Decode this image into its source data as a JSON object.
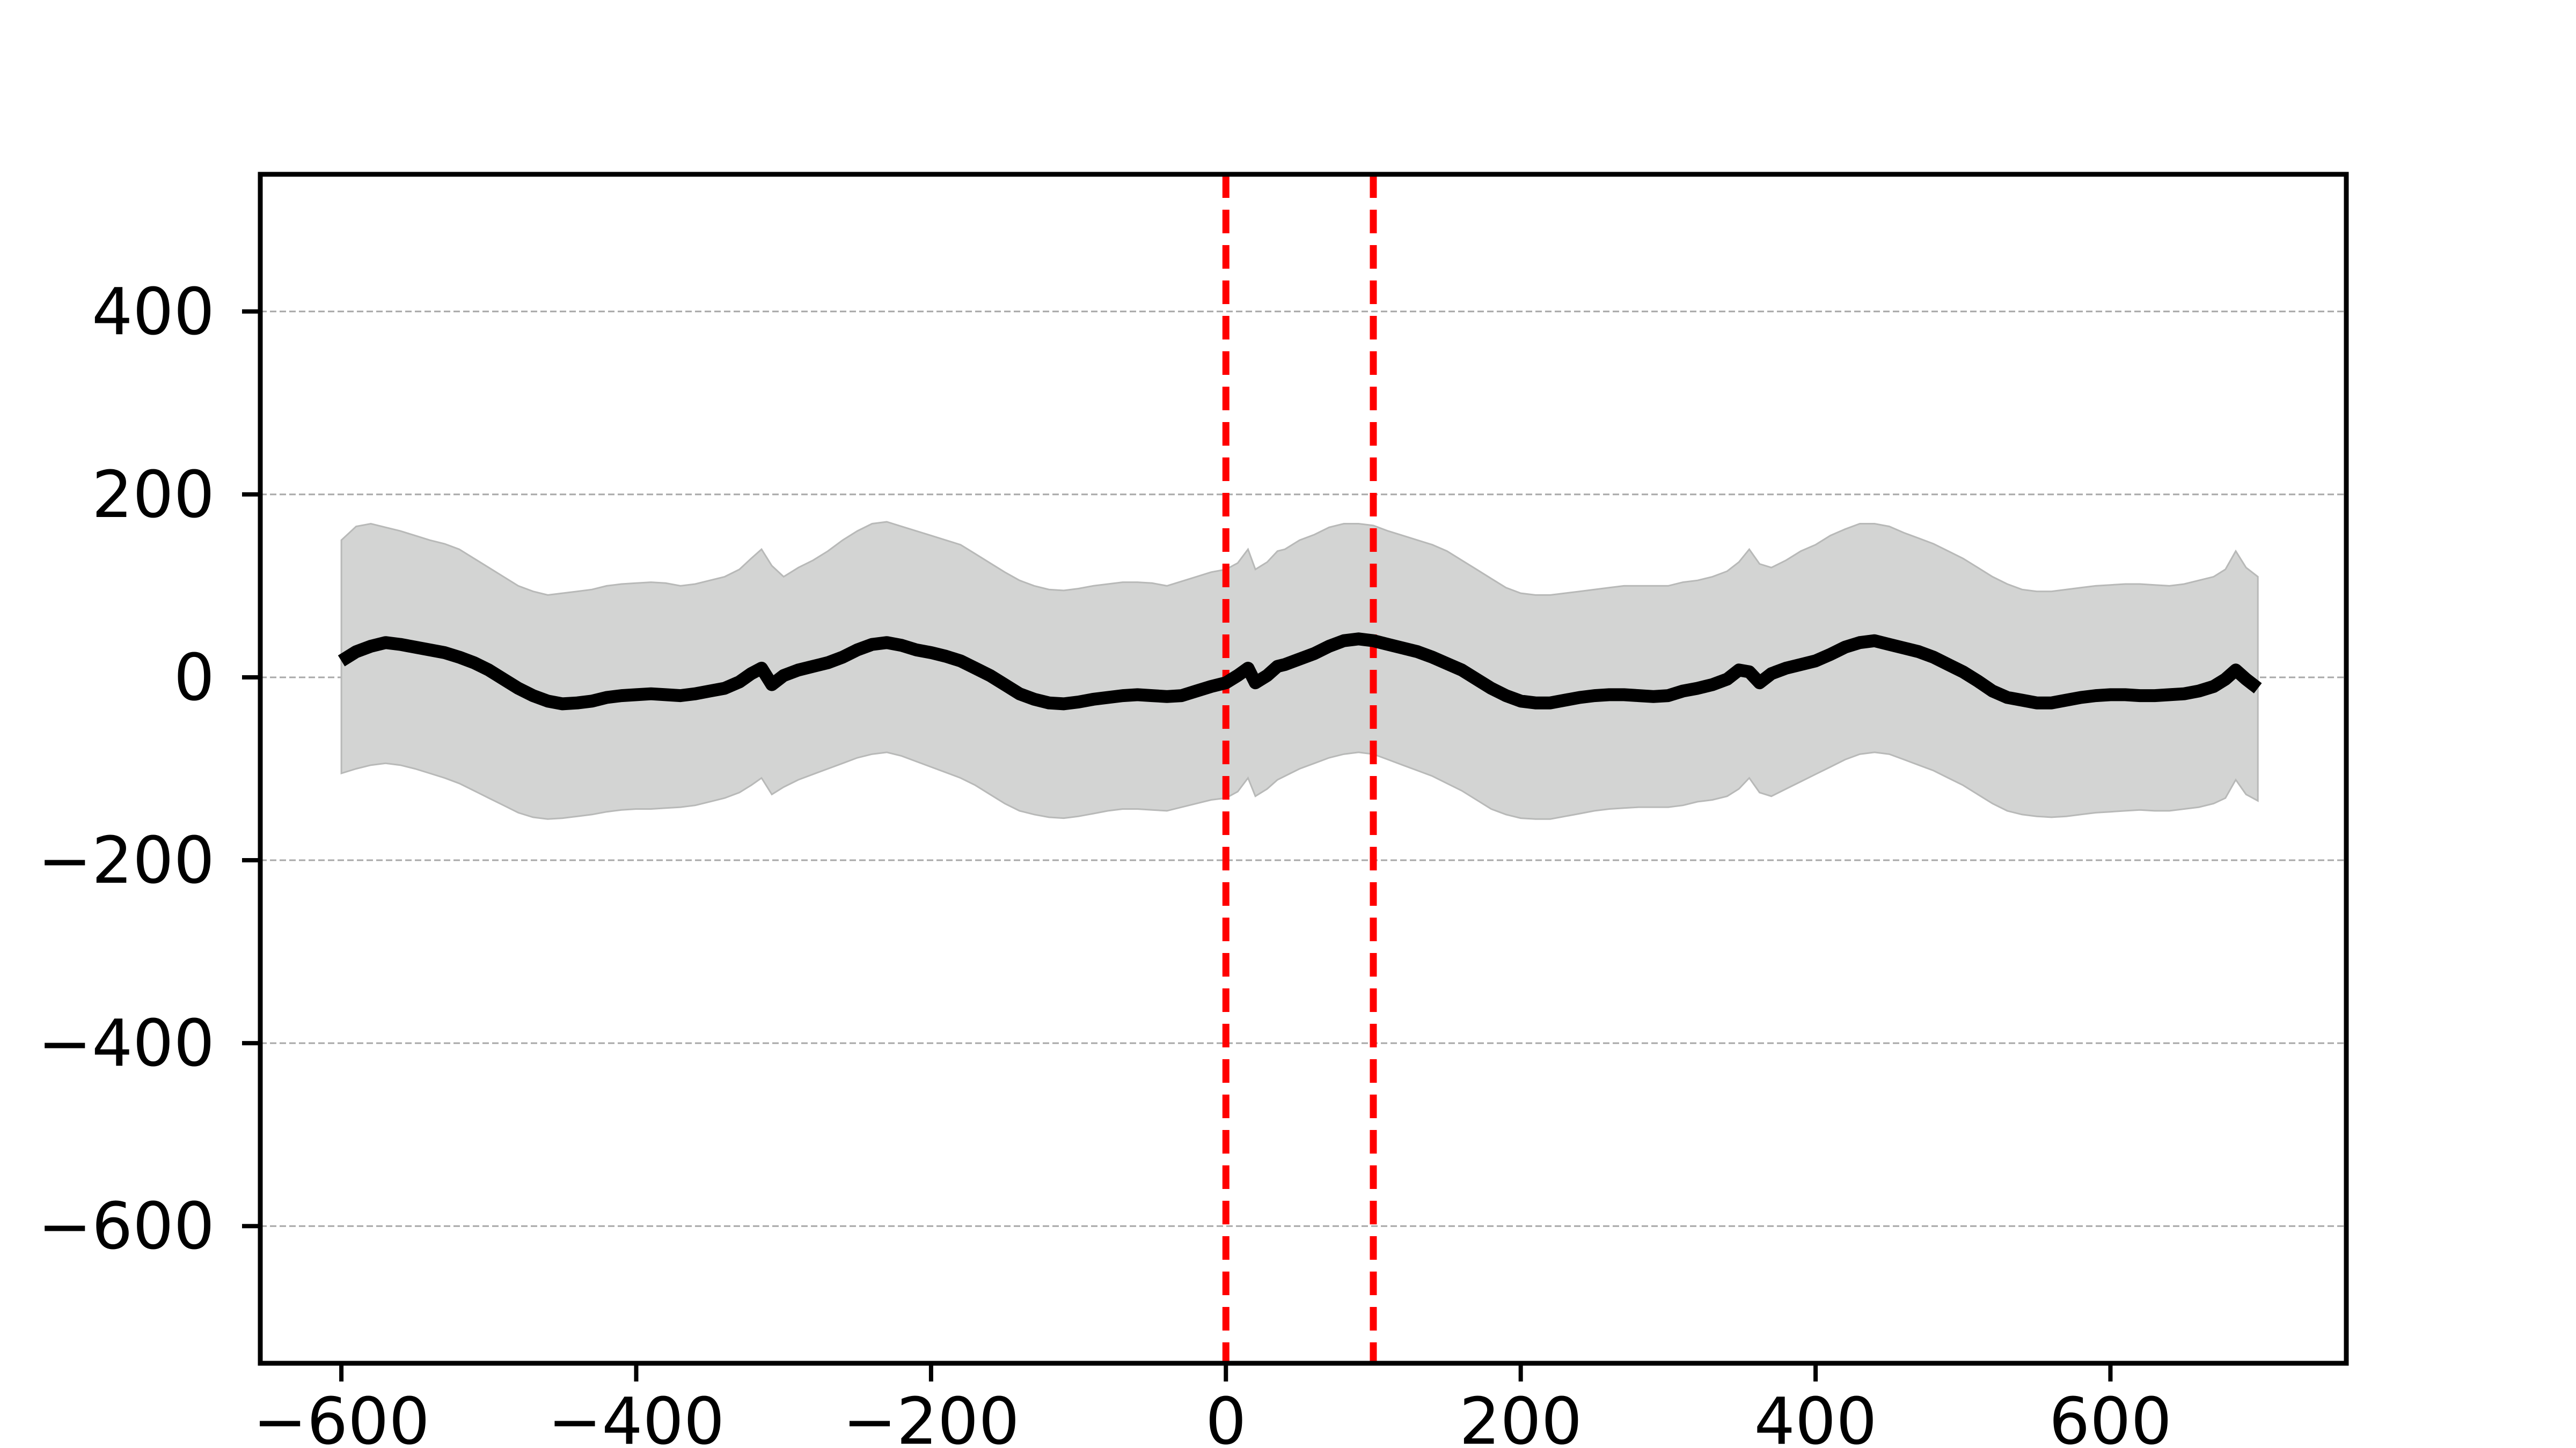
{
  "chart_data": {
    "type": "line",
    "title": "",
    "xlabel": "",
    "ylabel": "",
    "xlim": [
      -655,
      760
    ],
    "ylim": [
      -750,
      550
    ],
    "x_ticks": [
      -600,
      -400,
      -200,
      0,
      200,
      400,
      600
    ],
    "y_ticks": [
      -600,
      -400,
      -200,
      0,
      200,
      400
    ],
    "x_tick_labels": [
      "−600",
      "−400",
      "−200",
      "0",
      "200",
      "400",
      "600"
    ],
    "y_tick_labels": [
      "−600",
      "−400",
      "−200",
      "0",
      "200",
      "400"
    ],
    "grid": "horizontal dashed",
    "vertical_lines": [
      0,
      100
    ],
    "colors": {
      "mean_line": "#000000",
      "band_fill": "#d3d4d3",
      "band_edge": "#b8b9b8",
      "vertical_lines": "#ff0000",
      "grid": "#a8a8a8"
    },
    "series": [
      {
        "type": "line",
        "x": [
          -600,
          -590,
          -580,
          -570,
          -560,
          -550,
          -540,
          -530,
          -520,
          -510,
          -500,
          -490,
          -480,
          -470,
          -460,
          -450,
          -440,
          -430,
          -420,
          -410,
          -400,
          -390,
          -380,
          -370,
          -360,
          -350,
          -340,
          -330,
          -322,
          -315,
          -308,
          -300,
          -290,
          -280,
          -270,
          -260,
          -250,
          -240,
          -230,
          -220,
          -210,
          -200,
          -190,
          -180,
          -170,
          -160,
          -150,
          -140,
          -130,
          -120,
          -110,
          -100,
          -90,
          -80,
          -70,
          -60,
          -50,
          -40,
          -30,
          -20,
          -10,
          0,
          8,
          15,
          20,
          28,
          35,
          40,
          50,
          60,
          70,
          80,
          90,
          100,
          110,
          120,
          130,
          140,
          150,
          160,
          170,
          180,
          190,
          200,
          210,
          220,
          230,
          240,
          250,
          260,
          270,
          280,
          290,
          300,
          310,
          320,
          330,
          340,
          348,
          355,
          362,
          370,
          380,
          390,
          400,
          410,
          420,
          430,
          440,
          450,
          460,
          470,
          480,
          490,
          500,
          510,
          520,
          530,
          540,
          550,
          560,
          570,
          580,
          590,
          600,
          610,
          620,
          630,
          640,
          650,
          660,
          670,
          678,
          685,
          692,
          700
        ],
        "y": [
          18,
          28,
          34,
          38,
          36,
          33,
          30,
          27,
          22,
          16,
          8,
          -2,
          -12,
          -20,
          -26,
          -29,
          -28,
          -26,
          -22,
          -20,
          -19,
          -18,
          -19,
          -20,
          -18,
          -15,
          -12,
          -5,
          4,
          10,
          -8,
          2,
          8,
          12,
          16,
          22,
          30,
          36,
          38,
          35,
          30,
          27,
          23,
          18,
          10,
          2,
          -8,
          -18,
          -24,
          -28,
          -29,
          -27,
          -24,
          -22,
          -20,
          -19,
          -20,
          -21,
          -20,
          -15,
          -10,
          -6,
          2,
          10,
          -6,
          2,
          12,
          14,
          20,
          26,
          34,
          40,
          42,
          40,
          36,
          32,
          28,
          22,
          15,
          8,
          -2,
          -12,
          -20,
          -26,
          -28,
          -28,
          -25,
          -22,
          -20,
          -19,
          -19,
          -20,
          -21,
          -20,
          -15,
          -12,
          -8,
          -2,
          8,
          6,
          -6,
          4,
          10,
          14,
          18,
          25,
          33,
          38,
          40,
          36,
          32,
          28,
          22,
          14,
          6,
          -4,
          -15,
          -22,
          -25,
          -28,
          -28,
          -25,
          -22,
          -20,
          -19,
          -19,
          -20,
          -20,
          -19,
          -18,
          -15,
          -10,
          -2,
          8,
          -2,
          -12
        ]
      },
      {
        "type": "band",
        "x": [
          -600,
          -590,
          -580,
          -570,
          -560,
          -550,
          -540,
          -530,
          -520,
          -510,
          -500,
          -490,
          -480,
          -470,
          -460,
          -450,
          -440,
          -430,
          -420,
          -410,
          -400,
          -390,
          -380,
          -370,
          -360,
          -350,
          -340,
          -330,
          -322,
          -315,
          -308,
          -300,
          -290,
          -280,
          -270,
          -260,
          -250,
          -240,
          -230,
          -220,
          -210,
          -200,
          -190,
          -180,
          -170,
          -160,
          -150,
          -140,
          -130,
          -120,
          -110,
          -100,
          -90,
          -80,
          -70,
          -60,
          -50,
          -40,
          -30,
          -20,
          -10,
          0,
          8,
          15,
          20,
          28,
          35,
          40,
          50,
          60,
          70,
          80,
          90,
          100,
          110,
          120,
          130,
          140,
          150,
          160,
          170,
          180,
          190,
          200,
          210,
          220,
          230,
          240,
          250,
          260,
          270,
          280,
          290,
          300,
          310,
          320,
          330,
          340,
          348,
          355,
          362,
          370,
          380,
          390,
          400,
          410,
          420,
          430,
          440,
          450,
          460,
          470,
          480,
          490,
          500,
          510,
          520,
          530,
          540,
          550,
          560,
          570,
          580,
          590,
          600,
          610,
          620,
          630,
          640,
          650,
          660,
          670,
          678,
          685,
          692,
          700
        ],
        "upper": [
          150,
          165,
          168,
          164,
          160,
          155,
          150,
          146,
          140,
          130,
          120,
          110,
          100,
          94,
          90,
          92,
          94,
          96,
          100,
          102,
          103,
          104,
          103,
          100,
          102,
          106,
          110,
          118,
          130,
          140,
          122,
          110,
          120,
          128,
          138,
          150,
          160,
          168,
          170,
          165,
          160,
          155,
          150,
          145,
          135,
          125,
          115,
          106,
          100,
          96,
          95,
          97,
          100,
          102,
          104,
          104,
          103,
          100,
          105,
          110,
          115,
          118,
          125,
          140,
          118,
          126,
          138,
          140,
          150,
          156,
          164,
          168,
          168,
          166,
          160,
          155,
          150,
          145,
          138,
          128,
          118,
          108,
          98,
          92,
          90,
          90,
          92,
          94,
          96,
          98,
          100,
          100,
          100,
          100,
          104,
          106,
          110,
          116,
          126,
          140,
          124,
          120,
          128,
          138,
          145,
          155,
          162,
          168,
          168,
          165,
          158,
          152,
          146,
          138,
          130,
          120,
          110,
          102,
          96,
          94,
          94,
          96,
          98,
          100,
          101,
          102,
          102,
          101,
          100,
          102,
          106,
          110,
          118,
          138,
          120,
          110
        ],
        "lower": [
          -105,
          -100,
          -96,
          -94,
          -96,
          -100,
          -105,
          -110,
          -116,
          -124,
          -132,
          -140,
          -148,
          -153,
          -155,
          -154,
          -152,
          -150,
          -147,
          -145,
          -144,
          -144,
          -143,
          -142,
          -140,
          -136,
          -132,
          -126,
          -118,
          -110,
          -128,
          -120,
          -112,
          -106,
          -100,
          -94,
          -88,
          -84,
          -82,
          -86,
          -92,
          -98,
          -104,
          -110,
          -118,
          -128,
          -138,
          -146,
          -150,
          -153,
          -154,
          -152,
          -149,
          -146,
          -144,
          -144,
          -145,
          -146,
          -142,
          -138,
          -134,
          -132,
          -125,
          -110,
          -130,
          -122,
          -112,
          -108,
          -100,
          -94,
          -88,
          -84,
          -82,
          -84,
          -90,
          -96,
          -102,
          -108,
          -116,
          -124,
          -134,
          -144,
          -150,
          -154,
          -155,
          -155,
          -152,
          -149,
          -146,
          -144,
          -143,
          -142,
          -142,
          -142,
          -140,
          -136,
          -134,
          -130,
          -122,
          -110,
          -126,
          -130,
          -122,
          -114,
          -106,
          -98,
          -90,
          -84,
          -82,
          -84,
          -90,
          -96,
          -102,
          -110,
          -118,
          -128,
          -138,
          -146,
          -150,
          -152,
          -153,
          -152,
          -150,
          -148,
          -147,
          -146,
          -145,
          -146,
          -146,
          -144,
          -142,
          -138,
          -132,
          -112,
          -128,
          -135
        ]
      }
    ]
  }
}
